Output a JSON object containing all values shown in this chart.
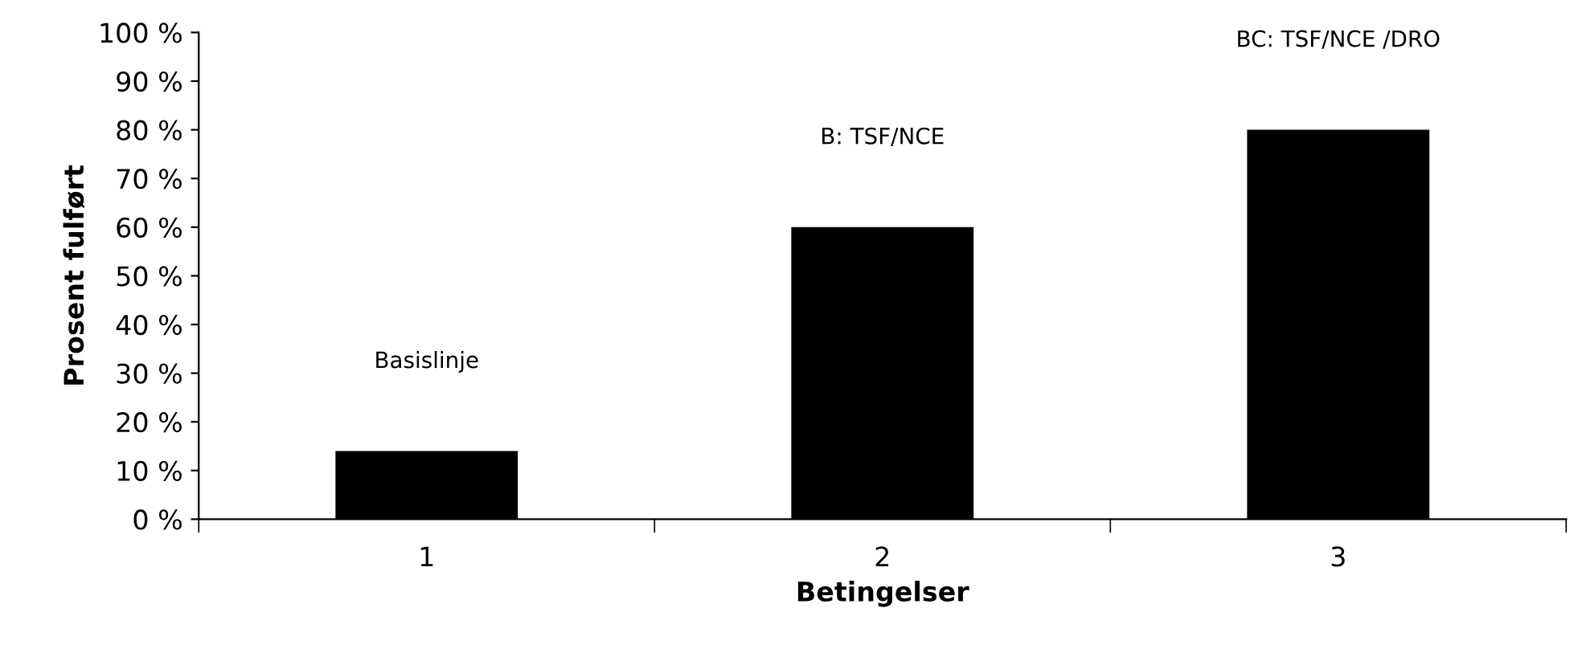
{
  "chart_data": {
    "type": "bar",
    "xlabel": "Betingelser",
    "ylabel": "Prosent fulført",
    "categories": [
      "1",
      "2",
      "3"
    ],
    "series": [
      {
        "color": "#000000",
        "values": [
          14,
          60,
          80
        ]
      }
    ],
    "ylim": [
      0,
      100
    ],
    "yticks": [
      {
        "value": 0,
        "label": "0 %"
      },
      {
        "value": 10,
        "label": "10 %"
      },
      {
        "value": 20,
        "label": "20 %"
      },
      {
        "value": 30,
        "label": "30 %"
      },
      {
        "value": 40,
        "label": "40 %"
      },
      {
        "value": 50,
        "label": "50 %"
      },
      {
        "value": 60,
        "label": "60 %"
      },
      {
        "value": 70,
        "label": "70 %"
      },
      {
        "value": 80,
        "label": "80 %"
      },
      {
        "value": 90,
        "label": "90 %"
      },
      {
        "value": 100,
        "label": "100 %"
      }
    ],
    "annotations": [
      "Basislinje",
      "B: TSF/NCE",
      "BC: TSF/NCE /DRO"
    ],
    "grid": false,
    "legend": false
  }
}
